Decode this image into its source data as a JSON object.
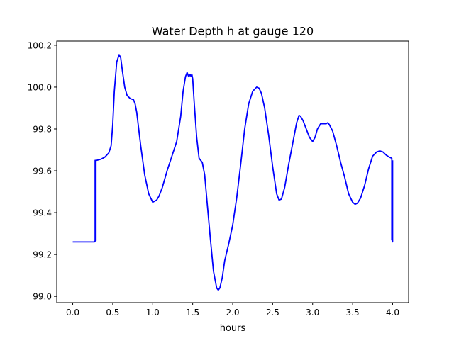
{
  "chart_data": {
    "type": "line",
    "title": "Water Depth h at gauge 120",
    "xlabel": "hours",
    "ylabel": "",
    "xlim": [
      -0.2,
      4.2
    ],
    "ylim": [
      98.97,
      100.22
    ],
    "xticks": [
      0.0,
      0.5,
      1.0,
      1.5,
      2.0,
      2.5,
      3.0,
      3.5,
      4.0
    ],
    "xtick_labels": [
      "0.0",
      "0.5",
      "1.0",
      "1.5",
      "2.0",
      "2.5",
      "3.0",
      "3.5",
      "4.0"
    ],
    "yticks": [
      99.0,
      99.2,
      99.4,
      99.6,
      99.8,
      100.0,
      100.2
    ],
    "ytick_labels": [
      "99.0",
      "99.2",
      "99.4",
      "99.6",
      "99.8",
      "100.0",
      "100.2"
    ],
    "grid": false,
    "legend": "none",
    "line_color": "#0000ff",
    "series": [
      {
        "x": [
          0.0,
          0.27,
          0.28,
          0.28,
          0.28,
          0.28,
          0.29,
          0.29,
          0.29,
          0.3,
          0.35,
          0.4,
          0.45,
          0.48,
          0.5,
          0.52,
          0.55,
          0.58,
          0.6,
          0.62,
          0.65,
          0.68,
          0.72,
          0.76,
          0.78,
          0.8,
          0.85,
          0.9,
          0.95,
          1.0,
          1.05,
          1.08,
          1.12,
          1.18,
          1.24,
          1.3,
          1.35,
          1.38,
          1.41,
          1.43,
          1.45,
          1.47,
          1.48,
          1.49,
          1.5,
          1.52,
          1.55,
          1.58,
          1.62,
          1.65,
          1.68,
          1.72,
          1.76,
          1.8,
          1.82,
          1.84,
          1.87,
          1.9,
          1.95,
          2.0,
          2.05,
          2.1,
          2.15,
          2.2,
          2.25,
          2.3,
          2.33,
          2.36,
          2.4,
          2.45,
          2.5,
          2.55,
          2.58,
          2.61,
          2.65,
          2.7,
          2.75,
          2.8,
          2.83,
          2.85,
          2.88,
          2.92,
          2.96,
          3.0,
          3.03,
          3.06,
          3.1,
          3.14,
          3.17,
          3.19,
          3.21,
          3.25,
          3.3,
          3.35,
          3.4,
          3.45,
          3.5,
          3.53,
          3.56,
          3.6,
          3.65,
          3.7,
          3.75,
          3.8,
          3.84,
          3.88,
          3.92,
          3.96,
          3.99,
          3.99,
          4.0,
          4.0,
          4.0
        ],
        "y": [
          99.26,
          99.26,
          99.265,
          99.65,
          99.265,
          99.65,
          99.265,
          99.65,
          99.65,
          99.65,
          99.655,
          99.665,
          99.685,
          99.72,
          99.82,
          99.98,
          100.12,
          100.155,
          100.14,
          100.08,
          100.0,
          99.96,
          99.945,
          99.94,
          99.92,
          99.88,
          99.72,
          99.58,
          99.49,
          99.45,
          99.46,
          99.48,
          99.52,
          99.6,
          99.67,
          99.74,
          99.86,
          99.98,
          100.05,
          100.07,
          100.05,
          100.06,
          100.05,
          100.06,
          100.04,
          99.92,
          99.76,
          99.66,
          99.64,
          99.58,
          99.45,
          99.28,
          99.12,
          99.04,
          99.03,
          99.04,
          99.09,
          99.17,
          99.25,
          99.34,
          99.47,
          99.63,
          99.8,
          99.92,
          99.98,
          100.0,
          99.995,
          99.97,
          99.9,
          99.77,
          99.62,
          99.49,
          99.46,
          99.465,
          99.52,
          99.63,
          99.73,
          99.83,
          99.865,
          99.86,
          99.84,
          99.8,
          99.76,
          99.74,
          99.76,
          99.8,
          99.825,
          99.825,
          99.825,
          99.83,
          99.82,
          99.79,
          99.72,
          99.64,
          99.57,
          99.49,
          99.45,
          99.44,
          99.445,
          99.47,
          99.53,
          99.61,
          99.67,
          99.69,
          99.695,
          99.69,
          99.675,
          99.665,
          99.66,
          99.27,
          99.265,
          99.26,
          99.65
        ]
      }
    ]
  }
}
